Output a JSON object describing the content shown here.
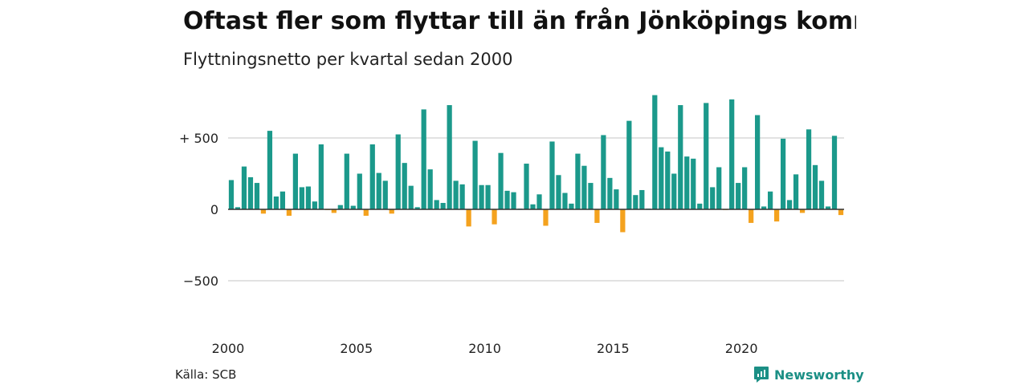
{
  "title": "Oftast fler som flyttar till än från Jönköpings kommun",
  "subtitle": "Flyttningsnetto per kvartal sedan 2000",
  "source": "Källa: SCB",
  "brand": "Newsworthy",
  "colors": {
    "positive": "#1b998b",
    "negative": "#f4a21e",
    "grid": "#d9d9d9",
    "zero": "#333333"
  },
  "chart_data": {
    "type": "bar",
    "ylim": [
      -800,
      800
    ],
    "yticks": [
      500,
      0,
      -500
    ],
    "ytick_labels": [
      "+ 500",
      "0",
      "−500"
    ],
    "xticks": [
      "2000",
      "2005",
      "2010",
      "2015",
      "2020"
    ],
    "grid": true,
    "series": [
      {
        "values": [
          205,
          15,
          300,
          225,
          185,
          -30,
          550,
          90,
          125,
          -45,
          390,
          155,
          160,
          55,
          455,
          -5,
          -25,
          30,
          390,
          25,
          250,
          -45,
          455,
          255,
          200,
          -30,
          525,
          325,
          165,
          15,
          700,
          280,
          65,
          45,
          730,
          200,
          175,
          -120,
          480,
          170,
          170,
          -105,
          395,
          130,
          120,
          5,
          320,
          35,
          105,
          -115,
          475,
          240,
          115,
          40,
          390,
          305,
          185,
          -95,
          520,
          220,
          140,
          -160,
          620,
          100,
          135,
          5,
          800,
          435,
          405,
          250,
          730,
          370,
          355,
          40,
          745,
          155,
          295,
          -5,
          770,
          185,
          295,
          -95,
          660,
          20,
          125,
          -85,
          495,
          65,
          245,
          -25,
          560,
          310,
          200,
          20,
          515,
          -40
        ]
      }
    ]
  }
}
